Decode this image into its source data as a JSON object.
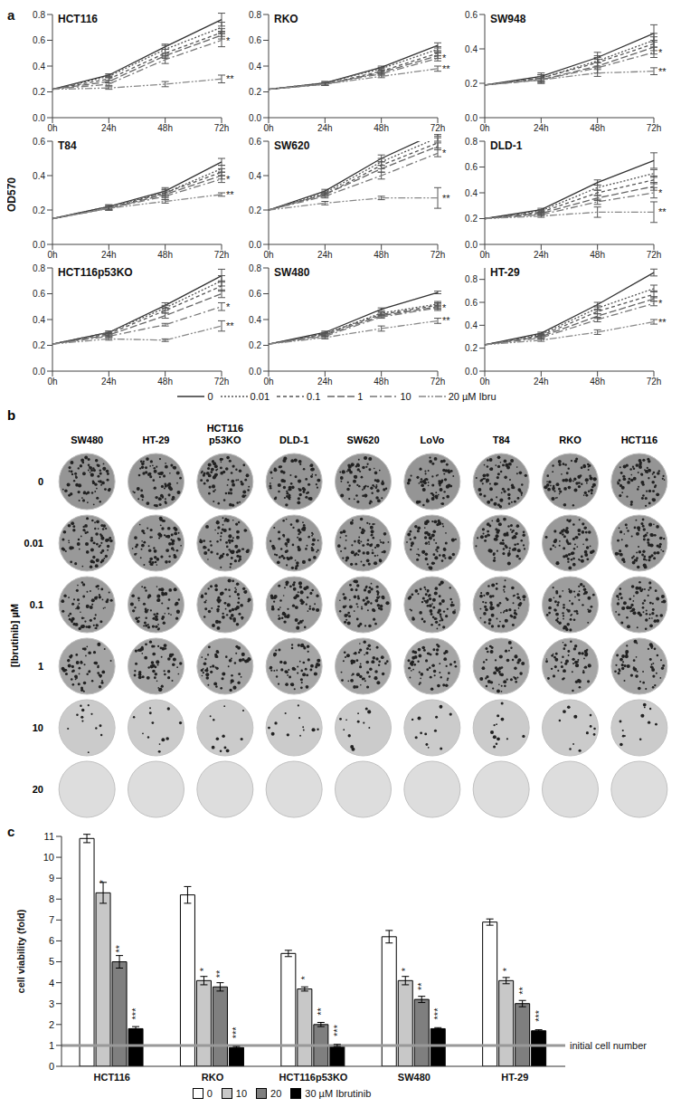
{
  "chart_data": [
    {
      "type": "line",
      "panel": "a",
      "ylabel": "OD570",
      "legend": "bottom",
      "categories": [
        "0h",
        "24h",
        "48h",
        "72h"
      ],
      "series": [
        {
          "name": "0",
          "color": "#333333",
          "line_style": "solid"
        },
        {
          "name": "0.01",
          "color": "#555555",
          "line_style": "dotted"
        },
        {
          "name": "0.1",
          "color": "#555555",
          "line_style": "dashed"
        },
        {
          "name": "1",
          "color": "#666666",
          "line_style": "longdash"
        },
        {
          "name": "10",
          "color": "#777777",
          "line_style": "dashdot"
        },
        {
          "name": "20 µM Ibru",
          "color": "#888888",
          "line_style": "dashdotdot"
        }
      ],
      "charts": [
        {
          "title": "HCT116",
          "ylim": [
            0,
            0.8
          ],
          "yticks": [
            {
              "value": 0,
              "label": "0.0"
            },
            0.2,
            0.4,
            0.6,
            0.8
          ],
          "values": [
            [
              0.22,
              0.33,
              0.55,
              0.76
            ],
            [
              0.22,
              0.32,
              0.53,
              0.7
            ],
            [
              0.22,
              0.3,
              0.5,
              0.66
            ],
            [
              0.22,
              0.28,
              0.48,
              0.64
            ],
            [
              0.22,
              0.26,
              0.45,
              0.6
            ],
            [
              0.22,
              0.23,
              0.26,
              0.3
            ]
          ],
          "errors": [
            [
              0,
              0.01,
              0.02,
              0.05
            ],
            [
              0,
              0.01,
              0.03,
              0.04
            ],
            [
              0,
              0.01,
              0.03,
              0.03
            ],
            [
              0,
              0.01,
              0.02,
              0.03
            ],
            [
              0,
              0.01,
              0.03,
              0.05
            ],
            [
              0,
              0.01,
              0.02,
              0.03
            ]
          ],
          "annotations": [
            {
              "text": "*",
              "series": "10"
            },
            {
              "text": "**",
              "series": "20 µM Ibru"
            }
          ]
        },
        {
          "title": "RKO",
          "ylim": [
            0,
            0.8
          ],
          "yticks": [
            {
              "value": 0,
              "label": "0.0"
            },
            0.2,
            0.4,
            0.6,
            0.8
          ],
          "values": [
            [
              0.22,
              0.27,
              0.39,
              0.56
            ],
            [
              0.22,
              0.27,
              0.38,
              0.53
            ],
            [
              0.22,
              0.26,
              0.36,
              0.5
            ],
            [
              0.22,
              0.26,
              0.35,
              0.48
            ],
            [
              0.22,
              0.26,
              0.34,
              0.46
            ],
            [
              0.22,
              0.26,
              0.32,
              0.38
            ]
          ],
          "errors": [
            [
              0,
              0.01,
              0.01,
              0.02
            ],
            [
              0,
              0.01,
              0.01,
              0.02
            ],
            [
              0,
              0.01,
              0.01,
              0.02
            ],
            [
              0,
              0.01,
              0.01,
              0.02
            ],
            [
              0,
              0.01,
              0.01,
              0.02
            ],
            [
              0,
              0.01,
              0.01,
              0.02
            ]
          ],
          "annotations": [
            {
              "text": "*",
              "series": "10"
            },
            {
              "text": "**",
              "series": "20 µM Ibru"
            }
          ]
        },
        {
          "title": "SW948",
          "ylim": [
            0,
            0.6
          ],
          "yticks": [
            {
              "value": 0,
              "label": "0.0"
            },
            0.2,
            0.4,
            0.6
          ],
          "values": [
            [
              0.19,
              0.24,
              0.35,
              0.49
            ],
            [
              0.19,
              0.23,
              0.33,
              0.45
            ],
            [
              0.19,
              0.23,
              0.32,
              0.43
            ],
            [
              0.19,
              0.22,
              0.3,
              0.41
            ],
            [
              0.19,
              0.22,
              0.29,
              0.38
            ],
            [
              0.19,
              0.22,
              0.26,
              0.27
            ]
          ],
          "errors": [
            [
              0,
              0.02,
              0.03,
              0.05
            ],
            [
              0,
              0.02,
              0.03,
              0.04
            ],
            [
              0,
              0.02,
              0.03,
              0.04
            ],
            [
              0,
              0.02,
              0.04,
              0.04
            ],
            [
              0,
              0.02,
              0.03,
              0.03
            ],
            [
              0,
              0.01,
              0.02,
              0.02
            ]
          ],
          "annotations": [
            {
              "text": "*",
              "series": "10"
            },
            {
              "text": "**",
              "series": "20 µM Ibru"
            }
          ]
        },
        {
          "title": "T84",
          "ylim": [
            0,
            0.6
          ],
          "yticks": [
            {
              "value": 0,
              "label": "0.0"
            },
            0.2,
            0.4,
            0.6
          ],
          "values": [
            [
              0.15,
              0.22,
              0.31,
              0.48
            ],
            [
              0.15,
              0.22,
              0.3,
              0.44
            ],
            [
              0.15,
              0.21,
              0.3,
              0.42
            ],
            [
              0.15,
              0.21,
              0.29,
              0.4
            ],
            [
              0.15,
              0.21,
              0.28,
              0.38
            ],
            [
              0.15,
              0.21,
              0.25,
              0.29
            ]
          ],
          "errors": [
            [
              0,
              0.01,
              0.02,
              0.02
            ],
            [
              0,
              0.01,
              0.02,
              0.02
            ],
            [
              0,
              0.01,
              0.02,
              0.02
            ],
            [
              0,
              0.01,
              0.02,
              0.02
            ],
            [
              0,
              0.01,
              0.02,
              0.02
            ],
            [
              0,
              0.01,
              0.01,
              0.01
            ]
          ],
          "annotations": [
            {
              "text": "*",
              "series": "10"
            },
            {
              "text": "**",
              "series": "20 µM Ibru"
            }
          ]
        },
        {
          "title": "SW620",
          "ylim": [
            0,
            0.6
          ],
          "yticks": [
            {
              "value": 0,
              "label": "0.0"
            },
            0.2,
            0.4,
            0.6
          ],
          "values": [
            [
              0.2,
              0.31,
              0.5,
              0.65
            ],
            [
              0.2,
              0.3,
              0.48,
              0.62
            ],
            [
              0.2,
              0.29,
              0.46,
              0.59
            ],
            [
              0.2,
              0.29,
              0.44,
              0.57
            ],
            [
              0.2,
              0.28,
              0.4,
              0.53
            ],
            [
              0.2,
              0.24,
              0.27,
              0.27
            ]
          ],
          "errors": [
            [
              0,
              0.01,
              0.02,
              0.02
            ],
            [
              0,
              0.01,
              0.02,
              0.02
            ],
            [
              0,
              0.01,
              0.02,
              0.03
            ],
            [
              0,
              0.01,
              0.02,
              0.02
            ],
            [
              0,
              0.01,
              0.02,
              0.02
            ],
            [
              0,
              0.01,
              0.01,
              0.06
            ]
          ],
          "annotations": [
            {
              "text": "*",
              "series": "10"
            },
            {
              "text": "**",
              "series": "20 µM Ibru"
            }
          ]
        },
        {
          "title": "DLD-1",
          "ylim": [
            0,
            0.8
          ],
          "yticks": [
            {
              "value": 0,
              "label": "0.0"
            },
            0.2,
            0.4,
            0.6,
            0.8
          ],
          "values": [
            [
              0.2,
              0.27,
              0.48,
              0.65
            ],
            [
              0.2,
              0.26,
              0.44,
              0.55
            ],
            [
              0.2,
              0.25,
              0.4,
              0.5
            ],
            [
              0.2,
              0.24,
              0.36,
              0.45
            ],
            [
              0.2,
              0.23,
              0.33,
              0.4
            ],
            [
              0.2,
              0.22,
              0.25,
              0.25
            ]
          ],
          "errors": [
            [
              0,
              0.01,
              0.02,
              0.06
            ],
            [
              0,
              0.01,
              0.02,
              0.03
            ],
            [
              0,
              0.01,
              0.02,
              0.03
            ],
            [
              0,
              0.01,
              0.02,
              0.03
            ],
            [
              0,
              0.01,
              0.02,
              0.04
            ],
            [
              0,
              0.01,
              0.04,
              0.08
            ]
          ],
          "annotations": [
            {
              "text": "*",
              "series": "10"
            },
            {
              "text": "**",
              "series": "20 µM Ibru"
            }
          ]
        },
        {
          "title": "HCT116p53KO",
          "ylim": [
            0,
            0.8
          ],
          "yticks": [
            {
              "value": 0,
              "label": "0.0"
            },
            0.2,
            0.4,
            0.6,
            0.8
          ],
          "values": [
            [
              0.21,
              0.3,
              0.51,
              0.74
            ],
            [
              0.21,
              0.3,
              0.49,
              0.7
            ],
            [
              0.21,
              0.29,
              0.47,
              0.66
            ],
            [
              0.21,
              0.28,
              0.43,
              0.6
            ],
            [
              0.21,
              0.27,
              0.36,
              0.5
            ],
            [
              0.21,
              0.25,
              0.24,
              0.35
            ]
          ],
          "errors": [
            [
              0,
              0.01,
              0.02,
              0.05
            ],
            [
              0,
              0.01,
              0.02,
              0.04
            ],
            [
              0,
              0.01,
              0.02,
              0.04
            ],
            [
              0,
              0.01,
              0.02,
              0.03
            ],
            [
              0,
              0.01,
              0.01,
              0.03
            ],
            [
              0,
              0.01,
              0.01,
              0.04
            ]
          ],
          "annotations": [
            {
              "text": "*",
              "series": "10"
            },
            {
              "text": "**",
              "series": "20 µM Ibru"
            }
          ]
        },
        {
          "title": "SW480",
          "ylim": [
            0,
            0.8
          ],
          "yticks": [
            {
              "value": 0,
              "label": "0.0"
            },
            0.2,
            0.4,
            0.6,
            0.8
          ],
          "values": [
            [
              0.21,
              0.3,
              0.48,
              0.61
            ],
            [
              0.21,
              0.29,
              0.45,
              0.52
            ],
            [
              0.21,
              0.29,
              0.44,
              0.51
            ],
            [
              0.21,
              0.28,
              0.43,
              0.5
            ],
            [
              0.21,
              0.27,
              0.42,
              0.49
            ],
            [
              0.21,
              0.26,
              0.33,
              0.39
            ]
          ],
          "errors": [
            [
              0,
              0.01,
              0.01,
              0.01
            ],
            [
              0,
              0.01,
              0.01,
              0.02
            ],
            [
              0,
              0.01,
              0.01,
              0.02
            ],
            [
              0,
              0.01,
              0.01,
              0.02
            ],
            [
              0,
              0.01,
              0.01,
              0.02
            ],
            [
              0,
              0.01,
              0.02,
              0.02
            ]
          ],
          "annotations": [
            {
              "text": "*",
              "series": "10"
            },
            {
              "text": "**",
              "series": "20 µM Ibru"
            }
          ]
        },
        {
          "title": "HT-29",
          "ylim": [
            0,
            0.9
          ],
          "yticks": [
            {
              "value": 0,
              "label": "0.0"
            },
            0.2,
            0.4,
            0.6,
            0.8
          ],
          "values": [
            [
              0.23,
              0.33,
              0.58,
              0.86
            ],
            [
              0.23,
              0.32,
              0.55,
              0.72
            ],
            [
              0.23,
              0.31,
              0.52,
              0.67
            ],
            [
              0.23,
              0.3,
              0.48,
              0.63
            ],
            [
              0.23,
              0.29,
              0.45,
              0.59
            ],
            [
              0.23,
              0.27,
              0.34,
              0.43
            ]
          ],
          "errors": [
            [
              0,
              0.01,
              0.02,
              0.03
            ],
            [
              0,
              0.01,
              0.02,
              0.03
            ],
            [
              0,
              0.01,
              0.02,
              0.03
            ],
            [
              0,
              0.01,
              0.02,
              0.02
            ],
            [
              0,
              0.01,
              0.02,
              0.02
            ],
            [
              0,
              0.01,
              0.02,
              0.02
            ]
          ],
          "annotations": [
            {
              "text": "*",
              "series": "10"
            },
            {
              "text": "**",
              "series": "20 µM Ibru"
            }
          ]
        }
      ]
    },
    {
      "type": "bar",
      "panel": "c",
      "ylabel": "cell viability (fold)",
      "legend": "bottom",
      "categories": [
        "HCT116",
        "RKO",
        "HCT116p53KO",
        "SW480",
        "HT-29"
      ],
      "ylim": [
        0,
        11
      ],
      "yticks": [
        0,
        1,
        2,
        3,
        4,
        5,
        6,
        7,
        8,
        9,
        10,
        11
      ],
      "series": [
        {
          "name": "0",
          "color": "#ffffff",
          "values": [
            10.9,
            8.2,
            5.4,
            6.2,
            6.9
          ],
          "errors": [
            0.2,
            0.4,
            0.15,
            0.3,
            0.15
          ]
        },
        {
          "name": "10",
          "color": "#c8c8c8",
          "values": [
            8.3,
            4.1,
            3.7,
            4.1,
            4.1
          ],
          "errors": [
            0.5,
            0.2,
            0.1,
            0.2,
            0.15
          ],
          "annotation": "*"
        },
        {
          "name": "20",
          "color": "#7f7f7f",
          "values": [
            5.0,
            3.8,
            2.0,
            3.2,
            3.0
          ],
          "errors": [
            0.3,
            0.2,
            0.1,
            0.15,
            0.15
          ],
          "annotation": "**"
        },
        {
          "name": "30 µM Ibrutinib",
          "color": "#000000",
          "values": [
            1.8,
            0.9,
            1.0,
            1.8,
            1.7
          ],
          "errors": [
            0.1,
            0.05,
            0.05,
            0.05,
            0.05
          ],
          "annotation": "***"
        }
      ],
      "reference": {
        "value": 1,
        "label": "initial cell number"
      }
    }
  ],
  "colony_plates": {
    "panel": "b",
    "type": "image_grid",
    "ylabel": "[Ibrutinib] µM",
    "columns": [
      "SW480",
      "HT-29",
      "HCT116 p53KO",
      "DLD-1",
      "SW620",
      "LoVo",
      "T84",
      "RKO",
      "HCT116"
    ],
    "rows": [
      0,
      0.01,
      0.1,
      1,
      10,
      20
    ]
  }
}
